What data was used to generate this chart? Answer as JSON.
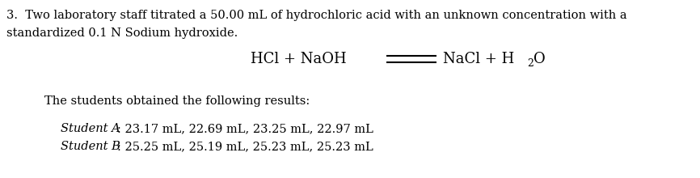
{
  "bg_color": "#ffffff",
  "text_color": "#000000",
  "line1": "3.  Two laboratory staff titrated a 50.00 mL of hydrochloric acid with an unknown concentration with a",
  "line2": "standardized 0.1 N Sodium hydroxide.",
  "equation_left": "HCl + NaOH",
  "equation_right": "NaCl + H",
  "equation_sub": "2",
  "equation_end": "O",
  "results_intro": "The students obtained the following results:",
  "student_a_label": "Student A",
  "student_a_data": ": 23.17 mL, 22.69 mL, 23.25 mL, 22.97 mL",
  "student_b_label": "Student B",
  "student_b_data": ": 25.25 mL, 25.19 mL, 25.23 mL, 25.23 mL",
  "font_size_body": 10.5,
  "font_size_eq": 13,
  "font_size_results": 10.5,
  "font_size_students": 10.5
}
